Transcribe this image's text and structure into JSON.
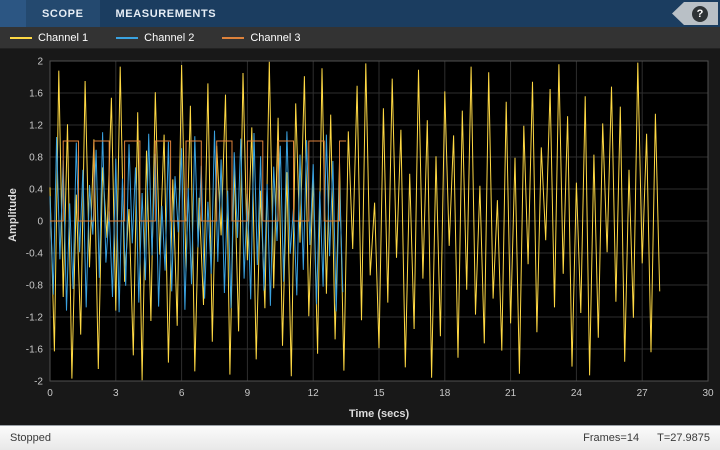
{
  "toolbar": {
    "tabs": [
      {
        "label": "SCOPE"
      },
      {
        "label": "MEASUREMENTS"
      }
    ],
    "help_glyph": "?"
  },
  "status_bar": {
    "left": "Stopped",
    "frames": "Frames=14",
    "time": "T=27.9875"
  },
  "colors": {
    "toolbar_bg": "#1b3d60",
    "legend_bg": "#333333",
    "figure_bg": "#181818",
    "plot_bg": "#000000",
    "grid": "#2e2e2e",
    "axis_border": "#4f4f4f",
    "tick_text": "#c8c8c8",
    "channel1": "#ffd944",
    "channel2": "#3aa2e0",
    "channel3": "#de823b"
  },
  "chart_data": {
    "type": "line",
    "title": "",
    "xlabel": "Time (secs)",
    "ylabel": "Amplitude",
    "xlim": [
      0,
      30
    ],
    "ylim": [
      -2,
      2
    ],
    "x_ticks": [
      0,
      3,
      6,
      9,
      12,
      15,
      18,
      21,
      24,
      27,
      30
    ],
    "y_ticks": [
      2,
      1.6,
      1.2,
      0.8,
      0.4,
      0,
      -0.4,
      -0.8,
      -1.2,
      -1.6,
      -2
    ],
    "grid": true,
    "legend_position": "top",
    "series": [
      {
        "name": "Channel 1",
        "color": "#ffd944",
        "description": "noisy signal spanning 0 to 27.9875 s, amplitude about -2 to 2",
        "x_start": 0,
        "x_step": 0.2,
        "values": [
          0.42,
          -1.63,
          1.88,
          -0.95,
          1.21,
          -1.97,
          0.33,
          -1.42,
          1.75,
          -0.58,
          1.02,
          -1.85,
          0.67,
          -0.21,
          1.54,
          -1.12,
          1.93,
          -0.76,
          0.15,
          -1.68,
          1.36,
          -1.99,
          0.88,
          -1.25,
          1.61,
          -0.42,
          1.08,
          -1.77,
          0.52,
          -1.31,
          1.95,
          -0.63,
          1.44,
          -1.88,
          0.29,
          -1.05,
          1.72,
          -1.51,
          0.94,
          -0.18,
          1.58,
          -1.92,
          0.71,
          -1.38,
          1.85,
          -0.49,
          1.17,
          -1.73,
          0.38,
          -1.09,
          1.99,
          -0.84,
          1.29,
          -1.56,
          0.61,
          -1.94,
          1.47,
          -0.27,
          1.81,
          -1.19,
          0.55,
          -1.66,
          1.91,
          -0.91,
          1.33,
          -1.48,
          0.74,
          -1.87,
          1.12,
          -0.35,
          1.69,
          -1.24,
          1.97,
          -0.68,
          0.23,
          -1.59,
          1.41,
          -1.02,
          1.78,
          -0.46,
          1.14,
          -1.83,
          0.59,
          -1.35,
          1.89,
          -0.72,
          1.26,
          -1.96,
          0.81,
          -1.44,
          1.62,
          -0.31,
          1.07,
          -1.71,
          1.38,
          -0.86,
          1.93,
          -1.17,
          0.44,
          -1.53,
          1.86,
          -0.97,
          0.26,
          -1.62,
          1.49,
          -1.28,
          0.79,
          -1.91,
          1.19,
          -0.54,
          1.74,
          -1.39,
          0.92,
          -0.24,
          1.65,
          -1.08,
          1.96,
          -0.66,
          1.31,
          -1.82,
          0.48,
          -1.15,
          1.56,
          -1.93,
          0.83,
          -1.46,
          1.22,
          -0.39,
          1.68,
          -1.01,
          1.43,
          -1.76,
          0.64,
          -1.21,
          1.98,
          -0.53,
          1.09,
          -1.64,
          1.34,
          -0.88
        ]
      },
      {
        "name": "Channel 2",
        "color": "#3aa2e0",
        "description": "noisy signal spanning 0 to about 13.5 s, amplitude about -1.1 to 1.1",
        "x_start": 0,
        "x_step": 0.15,
        "values": [
          0.31,
          -0.92,
          1.05,
          -0.48,
          0.76,
          -1.12,
          0.22,
          -0.85,
          0.98,
          -0.39,
          0.64,
          -1.08,
          0.45,
          -0.17,
          0.89,
          -0.71,
          1.11,
          -0.52,
          0.12,
          -0.95,
          0.78,
          -1.14,
          0.53,
          -0.81,
          0.96,
          -0.28,
          0.67,
          -1.02,
          0.35,
          -0.74,
          1.09,
          -0.43,
          0.84,
          -1.07,
          0.19,
          -0.62,
          0.99,
          -0.88,
          0.56,
          -0.14,
          0.91,
          -1.11,
          0.41,
          -0.79,
          1.06,
          -0.33,
          0.69,
          -0.97,
          0.24,
          -0.66,
          1.13,
          -0.51,
          0.77,
          -0.9,
          0.38,
          -1.09,
          0.86,
          -0.21,
          1.03,
          -0.72,
          0.34,
          -0.98,
          1.1,
          -0.55,
          0.81,
          -0.87,
          0.46,
          -1.06,
          0.68,
          -0.25,
          0.94,
          -0.76,
          1.12,
          -0.41,
          0.16,
          -0.93,
          0.83,
          -0.61,
          1.01,
          -0.3,
          0.71,
          -1.04,
          0.37,
          -0.82,
          1.08,
          -0.44,
          0.75,
          -1.13,
          0.49,
          -0.89
        ]
      },
      {
        "name": "Channel 3",
        "color": "#de823b",
        "description": "square wave between 0 and 1, period about 1.4 s, spanning 0 to about 13.5 s",
        "points": [
          [
            0,
            0
          ],
          [
            0.6,
            0
          ],
          [
            0.6,
            1
          ],
          [
            1.3,
            1
          ],
          [
            1.3,
            0
          ],
          [
            2.0,
            0
          ],
          [
            2.0,
            1
          ],
          [
            2.7,
            1
          ],
          [
            2.7,
            0
          ],
          [
            3.4,
            0
          ],
          [
            3.4,
            1
          ],
          [
            4.1,
            1
          ],
          [
            4.1,
            0
          ],
          [
            4.8,
            0
          ],
          [
            4.8,
            1
          ],
          [
            5.5,
            1
          ],
          [
            5.5,
            0
          ],
          [
            6.2,
            0
          ],
          [
            6.2,
            1
          ],
          [
            6.9,
            1
          ],
          [
            6.9,
            0
          ],
          [
            7.6,
            0
          ],
          [
            7.6,
            1
          ],
          [
            8.3,
            1
          ],
          [
            8.3,
            0
          ],
          [
            9.0,
            0
          ],
          [
            9.0,
            1
          ],
          [
            9.7,
            1
          ],
          [
            9.7,
            0
          ],
          [
            10.4,
            0
          ],
          [
            10.4,
            1
          ],
          [
            11.1,
            1
          ],
          [
            11.1,
            0
          ],
          [
            11.8,
            0
          ],
          [
            11.8,
            1
          ],
          [
            12.5,
            1
          ],
          [
            12.5,
            0
          ],
          [
            13.2,
            0
          ],
          [
            13.2,
            1
          ],
          [
            13.5,
            1
          ]
        ]
      }
    ]
  }
}
